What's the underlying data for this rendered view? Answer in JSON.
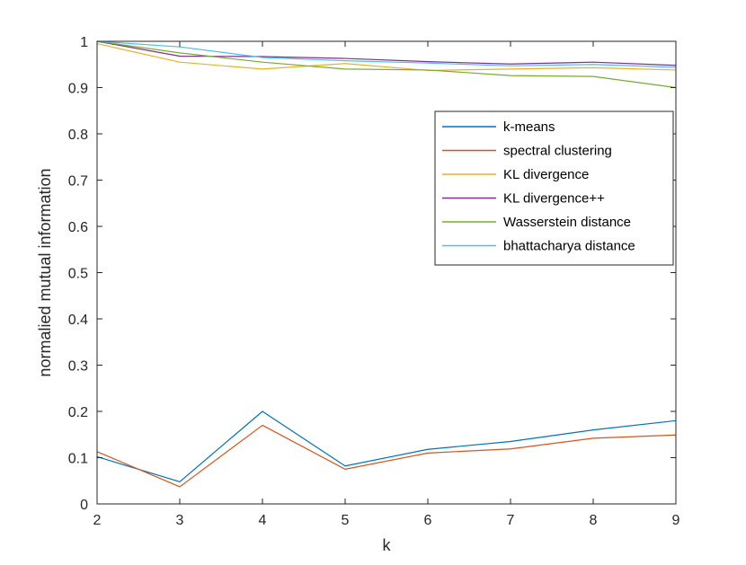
{
  "chart_data": {
    "type": "line",
    "title": "",
    "xlabel": "k",
    "ylabel": "normalied mutual information",
    "xlim": [
      2,
      9
    ],
    "ylim": [
      0,
      1
    ],
    "x": [
      2,
      3,
      4,
      5,
      6,
      7,
      8,
      9
    ],
    "xticks": [
      "2",
      "3",
      "4",
      "5",
      "6",
      "7",
      "8",
      "9"
    ],
    "yticks": [
      "0",
      "0.1",
      "0.2",
      "0.3",
      "0.4",
      "0.5",
      "0.6",
      "0.7",
      "0.8",
      "0.9",
      "1"
    ],
    "grid": false,
    "legend_position": "upper-right",
    "series": [
      {
        "name": "k-means",
        "color": "#0072BD",
        "values": [
          0.102,
          0.048,
          0.2,
          0.082,
          0.118,
          0.135,
          0.16,
          0.18
        ]
      },
      {
        "name": "spectral clustering",
        "color": "#D95319",
        "values": [
          0.113,
          0.037,
          0.17,
          0.075,
          0.11,
          0.119,
          0.142,
          0.149
        ]
      },
      {
        "name": "KL divergence",
        "color": "#EDB120",
        "values": [
          0.995,
          0.955,
          0.94,
          0.952,
          0.937,
          0.94,
          0.943,
          0.938
        ]
      },
      {
        "name": "KL divergence++",
        "color": "#7E2F8E",
        "values": [
          1.0,
          0.968,
          0.967,
          0.963,
          0.956,
          0.951,
          0.955,
          0.948
        ]
      },
      {
        "name": "Wasserstein distance",
        "color": "#77AC30",
        "values": [
          1.0,
          0.975,
          0.955,
          0.94,
          0.938,
          0.926,
          0.924,
          0.9
        ]
      },
      {
        "name": "bhattacharya distance",
        "color": "#4DBEEE",
        "values": [
          1.0,
          0.988,
          0.965,
          0.958,
          0.953,
          0.947,
          0.95,
          0.944
        ]
      }
    ]
  }
}
